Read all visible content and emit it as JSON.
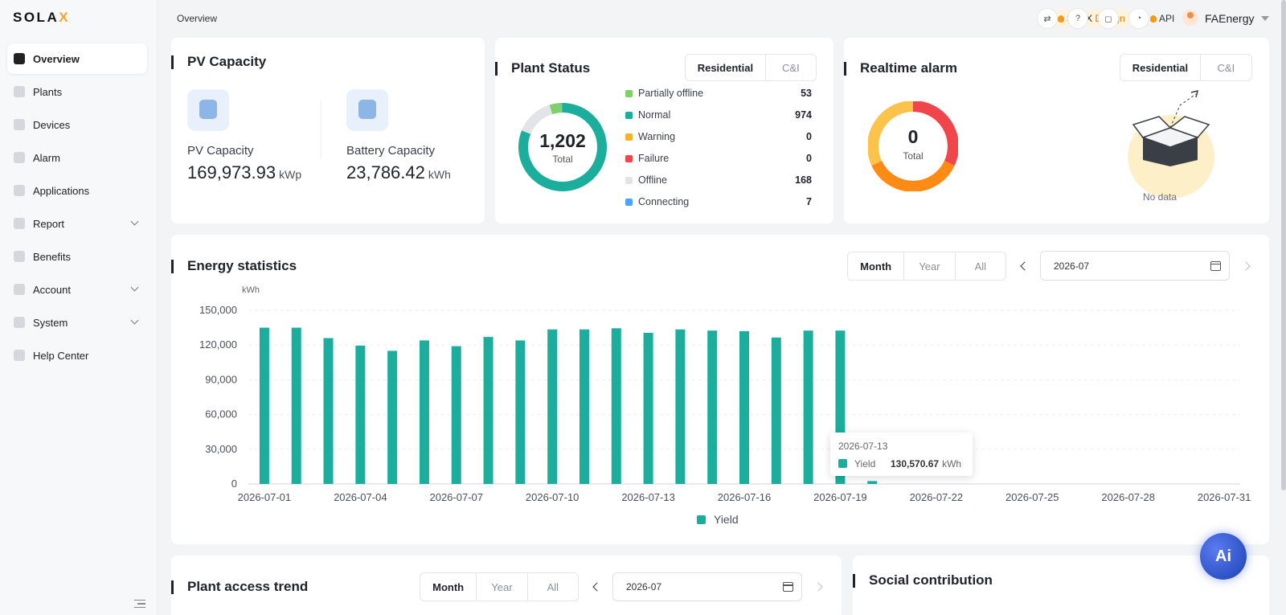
{
  "brand": {
    "logo_main": "SOLA",
    "logo_x": "X"
  },
  "sidebar": {
    "items": [
      {
        "label": "Overview"
      },
      {
        "label": "Plants"
      },
      {
        "label": "Devices"
      },
      {
        "label": "Alarm"
      },
      {
        "label": "Applications"
      },
      {
        "label": "Report"
      },
      {
        "label": "Benefits"
      },
      {
        "label": "Account"
      },
      {
        "label": "System"
      },
      {
        "label": "Help Center"
      }
    ]
  },
  "header": {
    "breadcrumb": "Overview",
    "design_prefix": "SolaX",
    "design_accent": "Design",
    "api_label": "API",
    "username": "FAEnergy"
  },
  "pv_capacity": {
    "title": "PV Capacity",
    "pv_label": "PV Capacity",
    "pv_value": "169,973.93",
    "pv_unit": "kWp",
    "battery_label": "Battery Capacity",
    "battery_value": "23,786.42",
    "battery_unit": "kWh"
  },
  "plant_status": {
    "title": "Plant Status",
    "tabs": [
      "Residential",
      "C&I"
    ],
    "total": "1,202",
    "total_label": "Total",
    "rows": [
      {
        "label": "Partially offline",
        "count": "53",
        "color": "#7ed06a"
      },
      {
        "label": "Normal",
        "count": "974",
        "color": "#1bae9c"
      },
      {
        "label": "Warning",
        "count": "0",
        "color": "#f6b32a"
      },
      {
        "label": "Failure",
        "count": "0",
        "color": "#f0454a"
      },
      {
        "label": "Offline",
        "count": "168",
        "color": "#e2e4e7"
      },
      {
        "label": "Connecting",
        "count": "7",
        "color": "#4da3f7"
      }
    ]
  },
  "realtime_alarm": {
    "title": "Realtime alarm",
    "tabs": [
      "Residential",
      "C&I"
    ],
    "total": "0",
    "total_label": "Total",
    "no_data": "No data"
  },
  "energy": {
    "title": "Energy statistics",
    "tabs": [
      "Month",
      "Year",
      "All"
    ],
    "date": "2026-07",
    "tooltip": {
      "date": "2026-07-13",
      "series": "Yield",
      "value": "130,570.67",
      "unit": "kWh"
    }
  },
  "chart_data": {
    "type": "bar",
    "ylabel": "kWh",
    "ylim": [
      0,
      150000
    ],
    "yticks": [
      "0",
      "30,000",
      "60,000",
      "90,000",
      "120,000",
      "150,000"
    ],
    "ytick_values": [
      0,
      30000,
      60000,
      90000,
      120000,
      150000
    ],
    "xticks": [
      "2026-07-01",
      "2026-07-04",
      "2026-07-07",
      "2026-07-10",
      "2026-07-13",
      "2026-07-16",
      "2026-07-19",
      "2026-07-22",
      "2026-07-25",
      "2026-07-28",
      "2026-07-31"
    ],
    "categories": [
      "2026-07-01",
      "2026-07-02",
      "2026-07-03",
      "2026-07-04",
      "2026-07-05",
      "2026-07-06",
      "2026-07-07",
      "2026-07-08",
      "2026-07-09",
      "2026-07-10",
      "2026-07-11",
      "2026-07-12",
      "2026-07-13",
      "2026-07-14",
      "2026-07-15",
      "2026-07-16",
      "2026-07-17",
      "2026-07-18",
      "2026-07-19",
      "2026-07-20",
      "2026-07-21",
      "2026-07-22",
      "2026-07-23",
      "2026-07-24",
      "2026-07-25",
      "2026-07-26",
      "2026-07-27",
      "2026-07-28",
      "2026-07-29",
      "2026-07-30",
      "2026-07-31"
    ],
    "series": [
      {
        "name": "Yield",
        "color": "#1bae9c",
        "values": [
          135000,
          135000,
          126000,
          119500,
          115000,
          124000,
          119000,
          127000,
          124000,
          133500,
          133500,
          134500,
          130570.67,
          133500,
          132500,
          132000,
          126500,
          132500,
          132500,
          2500,
          null,
          null,
          null,
          null,
          null,
          null,
          null,
          null,
          null,
          null,
          null
        ]
      }
    ],
    "legend": "bottom",
    "grid": true
  },
  "access_trend": {
    "title": "Plant access trend",
    "tabs": [
      "Month",
      "Year",
      "All"
    ],
    "date": "2026-07"
  },
  "social": {
    "title": "Social contribution"
  },
  "ai_label": "Ai"
}
